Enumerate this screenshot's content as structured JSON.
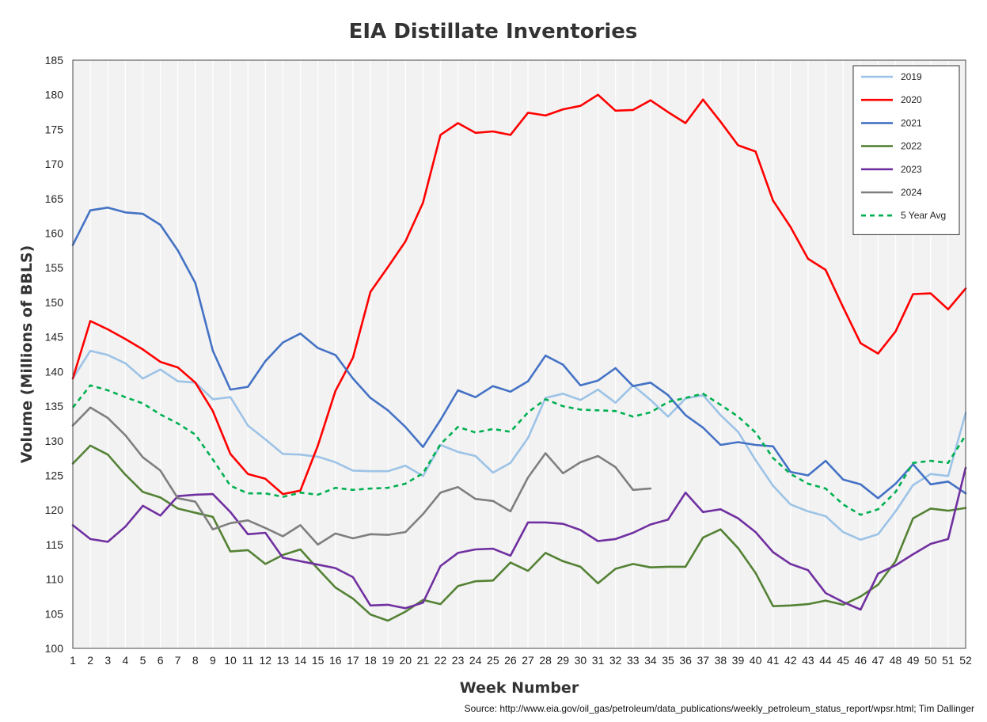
{
  "chart_data": {
    "type": "line",
    "title": "EIA Distillate Inventories",
    "xlabel": "Week Number",
    "ylabel": "Volume (Millions of BBLS)",
    "xlim": [
      1,
      52
    ],
    "ylim": [
      100,
      185
    ],
    "ytick_step": 5,
    "grid": "vertical",
    "plot_background": "#f2f2f2",
    "legend_position": "top-right",
    "x": [
      1,
      2,
      3,
      4,
      5,
      6,
      7,
      8,
      9,
      10,
      11,
      12,
      13,
      14,
      15,
      16,
      17,
      18,
      19,
      20,
      21,
      22,
      23,
      24,
      25,
      26,
      27,
      28,
      29,
      30,
      31,
      32,
      33,
      34,
      35,
      36,
      37,
      38,
      39,
      40,
      41,
      42,
      43,
      44,
      45,
      46,
      47,
      48,
      49,
      50,
      51,
      52
    ],
    "series": [
      {
        "name": "2019",
        "color": "#9dc3e6",
        "style": "solid",
        "values": [
          139.0,
          143.0,
          142.4,
          141.2,
          139.0,
          140.3,
          138.6,
          138.4,
          136.0,
          136.3,
          132.2,
          130.2,
          128.1,
          128.0,
          127.7,
          126.9,
          125.7,
          125.6,
          125.6,
          126.4,
          124.9,
          129.4,
          128.4,
          127.8,
          125.4,
          126.8,
          130.4,
          136.2,
          136.8,
          135.9,
          137.4,
          135.5,
          138.0,
          135.9,
          133.5,
          136.1,
          136.6,
          133.7,
          131.3,
          127.2,
          123.5,
          120.8,
          119.8,
          119.1,
          116.8,
          115.7,
          116.5,
          119.8,
          123.6,
          125.2,
          124.9,
          134.0
        ]
      },
      {
        "name": "2020",
        "color": "#ff0000",
        "style": "solid",
        "values": [
          139.0,
          147.3,
          146.1,
          144.7,
          143.2,
          141.4,
          140.6,
          138.4,
          134.3,
          128.1,
          125.2,
          124.5,
          122.3,
          122.8,
          129.3,
          137.2,
          142.0,
          151.5,
          155.1,
          158.8,
          164.4,
          174.2,
          175.9,
          174.5,
          174.7,
          174.2,
          177.4,
          177.0,
          177.9,
          178.4,
          180.0,
          177.7,
          177.8,
          179.2,
          177.5,
          175.9,
          179.3,
          176.1,
          172.7,
          171.8,
          164.7,
          160.9,
          156.3,
          154.7,
          149.3,
          144.1,
          142.6,
          145.8,
          151.2,
          151.3,
          149.0,
          152.0
        ]
      },
      {
        "name": "2021",
        "color": "#4472c4",
        "style": "solid",
        "values": [
          158.3,
          163.3,
          163.7,
          163.0,
          162.8,
          161.2,
          157.5,
          152.8,
          143.0,
          137.4,
          137.8,
          141.5,
          144.2,
          145.5,
          143.4,
          142.4,
          139.0,
          136.2,
          134.4,
          132.0,
          129.1,
          133.0,
          137.3,
          136.3,
          137.9,
          137.1,
          138.6,
          142.3,
          141.0,
          138.0,
          138.7,
          140.5,
          137.9,
          138.4,
          136.6,
          133.7,
          131.9,
          129.4,
          129.8,
          129.4,
          129.2,
          125.5,
          125.0,
          127.1,
          124.4,
          123.7,
          121.7,
          123.8,
          126.6,
          123.7,
          124.1,
          122.4
        ]
      },
      {
        "name": "2022",
        "color": "#548235",
        "style": "solid",
        "values": [
          126.7,
          129.3,
          128.0,
          125.1,
          122.6,
          121.8,
          120.2,
          119.6,
          119.0,
          114.0,
          114.2,
          112.2,
          113.5,
          114.3,
          111.5,
          108.8,
          107.2,
          104.9,
          104.0,
          105.3,
          107.0,
          106.4,
          109.0,
          109.7,
          109.8,
          112.4,
          111.2,
          113.8,
          112.6,
          111.8,
          109.4,
          111.5,
          112.2,
          111.7,
          111.8,
          111.8,
          116.0,
          117.2,
          114.5,
          110.9,
          106.1,
          106.2,
          106.4,
          106.9,
          106.3,
          107.5,
          109.2,
          112.6,
          118.8,
          120.2,
          119.9,
          120.3
        ]
      },
      {
        "name": "2023",
        "color": "#7030a0",
        "style": "solid",
        "values": [
          117.8,
          115.8,
          115.4,
          117.6,
          120.6,
          119.2,
          122.0,
          122.2,
          122.3,
          119.7,
          116.5,
          116.7,
          113.1,
          112.6,
          112.1,
          111.6,
          110.3,
          106.2,
          106.3,
          105.8,
          106.6,
          111.9,
          113.8,
          114.3,
          114.4,
          113.4,
          118.2,
          118.2,
          118.0,
          117.1,
          115.5,
          115.8,
          116.7,
          117.9,
          118.6,
          122.5,
          119.7,
          120.1,
          118.8,
          116.8,
          113.9,
          112.2,
          111.3,
          108.0,
          106.7,
          105.6,
          110.8,
          112.0,
          113.6,
          115.1,
          115.8,
          126.1
        ]
      },
      {
        "name": "2024",
        "color": "#7f7f7f",
        "style": "solid",
        "values": [
          132.2,
          134.8,
          133.3,
          130.8,
          127.6,
          125.7,
          121.7,
          121.2,
          117.2,
          118.1,
          118.5,
          117.4,
          116.2,
          117.8,
          115.0,
          116.6,
          115.9,
          116.5,
          116.4,
          116.8,
          119.4,
          122.5,
          123.3,
          121.6,
          121.3,
          119.8,
          124.7,
          128.2,
          125.3,
          126.9,
          127.8,
          126.2,
          122.9,
          123.1,
          null,
          null,
          null,
          null,
          null,
          null,
          null,
          null,
          null,
          null,
          null,
          null,
          null,
          null,
          null,
          null,
          null,
          null
        ]
      },
      {
        "name": "5 Year Avg",
        "color": "#00b050",
        "style": "dashed",
        "values": [
          134.8,
          138.0,
          137.3,
          136.3,
          135.4,
          133.8,
          132.5,
          130.9,
          127.3,
          123.5,
          122.4,
          122.4,
          121.9,
          122.5,
          122.2,
          123.2,
          122.9,
          123.1,
          123.2,
          123.8,
          125.3,
          129.5,
          132.0,
          131.2,
          131.7,
          131.3,
          134.1,
          136.0,
          135.0,
          134.5,
          134.4,
          134.3,
          133.5,
          134.1,
          135.6,
          136.2,
          136.8,
          135.2,
          133.5,
          131.2,
          127.5,
          125.2,
          123.8,
          123.1,
          120.8,
          119.3,
          120.1,
          122.6,
          126.8,
          127.1,
          126.8,
          130.8
        ]
      }
    ]
  },
  "source": "Source: http://www.eia.gov/oil_gas/petroleum/data_publications/weekly_petroleum_status_report/wpsr.html; Tim Dallinger"
}
